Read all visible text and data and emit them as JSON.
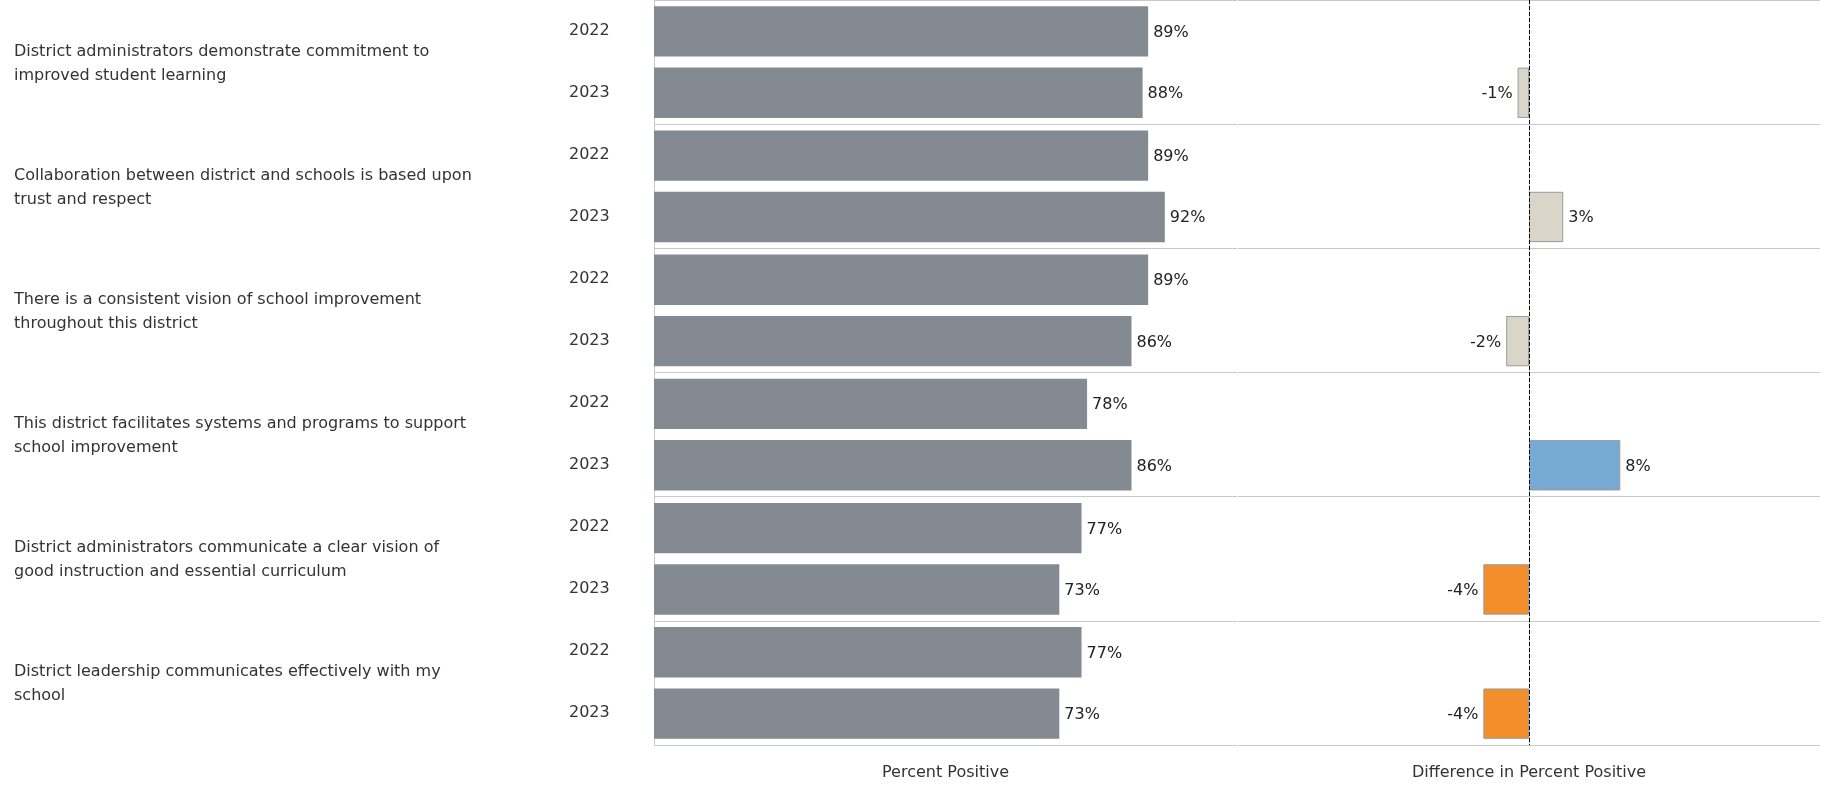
{
  "chart_data": [
    {
      "type": "bar",
      "orientation": "horizontal",
      "xlabel": "Percent Positive",
      "categories": [
        "District administrators demonstrate commitment to improved student learning",
        "Collaboration between district and schools is based upon trust and respect",
        "There is a consistent vision of school improvement throughout this district",
        "This district facilitates systems and programs to support school improvement",
        "District administrators communicate a clear vision of good instruction and essential curriculum",
        "District leadership communicates effectively with my school"
      ],
      "series": [
        {
          "name": "2022",
          "color": "#838a91",
          "values": [
            89,
            89,
            89,
            78,
            77,
            77
          ],
          "value_labels": [
            "89%",
            "89%",
            "89%",
            "78%",
            "77%",
            "77%"
          ]
        },
        {
          "name": "2023",
          "color": "#838a91",
          "values": [
            88,
            92,
            86,
            86,
            73,
            73
          ],
          "value_labels": [
            "88%",
            "92%",
            "86%",
            "86%",
            "73%",
            "73%"
          ]
        }
      ],
      "xlim": [
        0,
        105
      ],
      "grid": "y",
      "tick_labels": "y",
      "legend": false
    },
    {
      "type": "bar",
      "orientation": "horizontal",
      "xlabel": "Difference in Percent Positive",
      "categories": [
        null,
        null,
        null,
        null,
        null,
        null
      ],
      "series": [
        {
          "values": [
            -1,
            3,
            -2,
            8,
            -4,
            -4
          ],
          "colors": [
            "#d9d5c9",
            "#d9d5c9",
            "#d9d5c9",
            "#76aad2",
            "#f28e2b",
            "#f28e2b"
          ],
          "value_labels": [
            "-1%",
            "3%",
            "-2%",
            "8%",
            "-4%",
            "-4%"
          ]
        }
      ],
      "xlim": [
        -25.5,
        25.5
      ],
      "ref_lines": [
        {
          "axis": "x",
          "value": 0,
          "line_style": "dashed",
          "color": "#000000"
        }
      ],
      "grid": "y",
      "tick_labels": false,
      "legend": false
    }
  ]
}
